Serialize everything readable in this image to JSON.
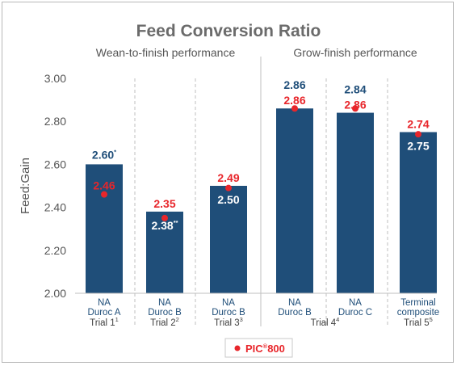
{
  "chart_data": {
    "type": "bar",
    "title": "Feed Conversion Ratio",
    "group_titles": [
      "Wean-to-finish performance",
      "Grow-finish performance"
    ],
    "ylabel": "Feed:Gain",
    "ylim": [
      2.0,
      3.0
    ],
    "yticks": [
      "2.00",
      "2.20",
      "2.40",
      "2.60",
      "2.80",
      "3.00"
    ],
    "categories": [
      {
        "line1": "NA",
        "line2": "Duroc A"
      },
      {
        "line1": "NA",
        "line2": "Duroc B"
      },
      {
        "line1": "NA",
        "line2": "Duroc B"
      },
      {
        "line1": "NA",
        "line2": "Duroc B"
      },
      {
        "line1": "NA",
        "line2": "Duroc C"
      },
      {
        "line1": "Terminal",
        "line2": "composite"
      }
    ],
    "trials": [
      {
        "label": "Trial 1",
        "sup": "1",
        "span": [
          0,
          0
        ]
      },
      {
        "label": "Trial 2",
        "sup": "2",
        "span": [
          1,
          1
        ]
      },
      {
        "label": "Trial 3",
        "sup": "3",
        "span": [
          2,
          2
        ]
      },
      {
        "label": "Trial 4",
        "sup": "4",
        "span": [
          3,
          4
        ]
      },
      {
        "label": "Trial 5",
        "sup": "5",
        "span": [
          5,
          5
        ]
      }
    ],
    "series": [
      {
        "kind": "bar",
        "values": [
          2.6,
          2.38,
          2.5,
          2.86,
          2.84,
          2.75
        ],
        "labels": [
          "2.60",
          "2.38",
          "2.50",
          "2.86",
          "2.84",
          "2.75"
        ],
        "label_sups": [
          "*",
          "**",
          "",
          "",
          "",
          ""
        ],
        "color": "#1f4e79"
      },
      {
        "kind": "point",
        "name": "PIC®800",
        "values": [
          2.46,
          2.35,
          2.49,
          2.86,
          2.86,
          2.74
        ],
        "labels": [
          "2.46",
          "2.35",
          "2.49",
          "2.86",
          "2.86",
          "2.74"
        ],
        "color": "#e8262b"
      }
    ],
    "legend": {
      "position": "bottom-center",
      "text": "PIC",
      "sup": "®",
      "tail": "800"
    },
    "grid": false
  }
}
